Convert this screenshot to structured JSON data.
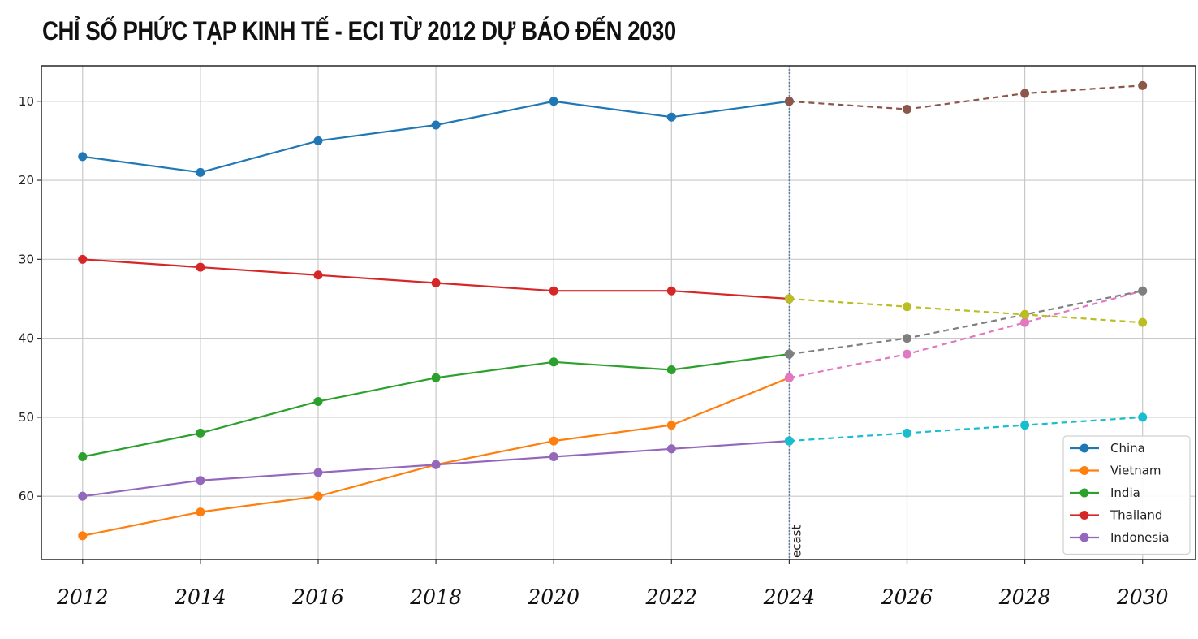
{
  "title": "CHỈ SỐ PHỨC TẠP KINH TẾ - ECI TỪ 2012 DỰ BÁO ĐẾN 2030",
  "chart_data": {
    "type": "line",
    "title": "CHỈ SỐ PHỨC TẠP KINH TẾ - ECI TỪ 2012 DỰ BÁO ĐẾN 2030",
    "xlabel": "",
    "ylabel": "",
    "x_ticks": [
      "2012",
      "2014",
      "2016",
      "2018",
      "2020",
      "2022",
      "2024",
      "2026",
      "2028",
      "2030"
    ],
    "y_ticks": [
      "10",
      "20",
      "30",
      "40",
      "50",
      "60"
    ],
    "xlim": [
      2011.3,
      2030.9
    ],
    "ylim": [
      68,
      5.5
    ],
    "y_inverted": true,
    "grid": true,
    "legend_position": "lower-right",
    "forecast_line": {
      "x": 2024,
      "label": "ecast",
      "color": "#5a7fa8"
    },
    "series": [
      {
        "name": "China",
        "color": "#1f77b4",
        "x": [
          2012,
          2014,
          2016,
          2018,
          2020,
          2022,
          2024
        ],
        "values": [
          17,
          19,
          15,
          13,
          10,
          12,
          10
        ]
      },
      {
        "name": "Vietnam",
        "color": "#ff7f0e",
        "x": [
          2012,
          2014,
          2016,
          2018,
          2020,
          2022,
          2024
        ],
        "values": [
          65,
          62,
          60,
          56,
          53,
          51,
          45
        ]
      },
      {
        "name": "India",
        "color": "#2ca02c",
        "x": [
          2012,
          2014,
          2016,
          2018,
          2020,
          2022,
          2024
        ],
        "values": [
          55,
          52,
          48,
          45,
          43,
          44,
          42
        ]
      },
      {
        "name": "Thailand",
        "color": "#d62728",
        "x": [
          2012,
          2014,
          2016,
          2018,
          2020,
          2022,
          2024
        ],
        "values": [
          30,
          31,
          32,
          33,
          34,
          34,
          35
        ]
      },
      {
        "name": "Indonesia",
        "color": "#9467bd",
        "x": [
          2012,
          2014,
          2016,
          2018,
          2020,
          2022,
          2024
        ],
        "values": [
          60,
          58,
          57,
          56,
          55,
          54,
          53
        ]
      }
    ],
    "forecast_series": [
      {
        "color": "#8c564b",
        "x": [
          2024,
          2026,
          2028,
          2030
        ],
        "values": [
          10,
          11,
          9,
          8
        ]
      },
      {
        "color": "#e377c2",
        "x": [
          2024,
          2026,
          2028,
          2030
        ],
        "values": [
          45,
          42,
          38,
          34
        ]
      },
      {
        "color": "#7f7f7f",
        "x": [
          2024,
          2026,
          2028,
          2030
        ],
        "values": [
          42,
          40,
          37,
          34
        ]
      },
      {
        "color": "#bcbd22",
        "x": [
          2024,
          2026,
          2028,
          2030
        ],
        "values": [
          35,
          36,
          37,
          38
        ]
      },
      {
        "color": "#17becf",
        "x": [
          2024,
          2026,
          2028,
          2030
        ],
        "values": [
          53,
          52,
          51,
          50
        ]
      }
    ]
  }
}
